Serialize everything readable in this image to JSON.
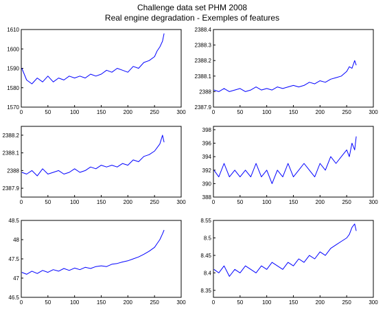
{
  "figure": {
    "title_line1": "Challenge data set PHM 2008",
    "title_line2": "Real engine degradation - Exemples of features"
  },
  "chart_data": [
    {
      "type": "line",
      "position": "row1-left",
      "xlim": [
        0,
        300
      ],
      "ylim": [
        1570,
        1610
      ],
      "x_ticks": [
        0,
        50,
        100,
        150,
        200,
        250,
        300
      ],
      "y_ticks": [
        1570,
        1580,
        1590,
        1600,
        1610
      ],
      "y_tick_labels": [
        "1570",
        "1580",
        "1590",
        "1600",
        "1610"
      ],
      "line_color": "#0000ff",
      "series": [
        {
          "x": [
            1,
            10,
            20,
            30,
            40,
            50,
            60,
            70,
            80,
            90,
            100,
            110,
            120,
            130,
            140,
            150,
            160,
            170,
            180,
            190,
            200,
            210,
            220,
            230,
            240,
            250,
            255,
            260,
            265,
            268
          ],
          "y": [
            1590,
            1584,
            1582,
            1585,
            1583,
            1586,
            1583,
            1585,
            1584,
            1586,
            1585,
            1586,
            1585,
            1587,
            1586,
            1587,
            1589,
            1588,
            1590,
            1589,
            1588,
            1591,
            1590,
            1593,
            1594,
            1596,
            1599,
            1601,
            1604,
            1608
          ]
        }
      ]
    },
    {
      "type": "line",
      "position": "row1-right",
      "xlim": [
        0,
        300
      ],
      "ylim": [
        2387.9,
        2388.4
      ],
      "x_ticks": [
        0,
        50,
        100,
        150,
        200,
        250,
        300
      ],
      "y_ticks": [
        2387.9,
        2388,
        2388.1,
        2388.2,
        2388.3,
        2388.4
      ],
      "y_tick_labels": [
        "2387.9",
        "2388",
        "2388.1",
        "2388.2",
        "2388.3",
        "2388.4"
      ],
      "line_color": "#0000ff",
      "series": [
        {
          "x": [
            1,
            10,
            20,
            30,
            40,
            50,
            60,
            70,
            80,
            90,
            100,
            110,
            120,
            130,
            140,
            150,
            160,
            170,
            180,
            190,
            200,
            210,
            220,
            230,
            240,
            250,
            255,
            260,
            265,
            268
          ],
          "y": [
            2388.01,
            2388.0,
            2388.02,
            2388.0,
            2388.01,
            2388.02,
            2388.0,
            2388.01,
            2388.03,
            2388.01,
            2388.02,
            2388.01,
            2388.03,
            2388.02,
            2388.03,
            2388.04,
            2388.03,
            2388.04,
            2388.06,
            2388.05,
            2388.07,
            2388.06,
            2388.08,
            2388.09,
            2388.1,
            2388.13,
            2388.16,
            2388.15,
            2388.2,
            2388.17
          ]
        }
      ]
    },
    {
      "type": "line",
      "position": "row2-left",
      "xlim": [
        0,
        300
      ],
      "ylim": [
        2387.85,
        2388.25
      ],
      "x_ticks": [
        0,
        50,
        100,
        150,
        200,
        250,
        300
      ],
      "y_ticks": [
        2387.9,
        2388,
        2388.1,
        2388.2
      ],
      "y_tick_labels": [
        "2387.9",
        "2388",
        "2388.1",
        "2388.2"
      ],
      "line_color": "#0000ff",
      "series": [
        {
          "x": [
            1,
            10,
            20,
            30,
            40,
            50,
            60,
            70,
            80,
            90,
            100,
            110,
            120,
            130,
            140,
            150,
            160,
            170,
            180,
            190,
            200,
            210,
            220,
            230,
            240,
            250,
            255,
            260,
            265,
            268
          ],
          "y": [
            2387.99,
            2387.98,
            2388.0,
            2387.97,
            2388.01,
            2387.98,
            2387.99,
            2388.0,
            2387.98,
            2387.99,
            2388.01,
            2387.99,
            2388.0,
            2388.02,
            2388.01,
            2388.03,
            2388.02,
            2388.03,
            2388.02,
            2388.04,
            2388.03,
            2388.06,
            2388.05,
            2388.08,
            2388.09,
            2388.11,
            2388.13,
            2388.15,
            2388.2,
            2388.16
          ]
        }
      ]
    },
    {
      "type": "line",
      "position": "row2-right",
      "xlim": [
        0,
        300
      ],
      "ylim": [
        388,
        398.5
      ],
      "x_ticks": [
        0,
        50,
        100,
        150,
        200,
        250,
        300
      ],
      "y_ticks": [
        388,
        390,
        392,
        394,
        396,
        398
      ],
      "y_tick_labels": [
        "388",
        "390",
        "392",
        "394",
        "396",
        "398"
      ],
      "line_color": "#0000ff",
      "series": [
        {
          "x": [
            1,
            10,
            20,
            30,
            40,
            50,
            60,
            70,
            80,
            90,
            100,
            110,
            120,
            130,
            140,
            150,
            160,
            170,
            180,
            190,
            200,
            210,
            220,
            230,
            240,
            250,
            255,
            260,
            265,
            268
          ],
          "y": [
            392,
            391,
            393,
            391,
            392,
            391,
            392,
            391,
            393,
            391,
            392,
            390,
            392,
            391,
            393,
            391,
            392,
            393,
            392,
            391,
            393,
            392,
            394,
            393,
            394,
            395,
            394,
            396,
            395,
            397
          ]
        }
      ]
    },
    {
      "type": "line",
      "position": "row3-left",
      "xlim": [
        0,
        300
      ],
      "ylim": [
        46.5,
        48.5
      ],
      "x_ticks": [
        0,
        50,
        100,
        150,
        200,
        250,
        300
      ],
      "y_ticks": [
        46.5,
        47,
        47.5,
        48,
        48.5
      ],
      "y_tick_labels": [
        "46.5",
        "47",
        "47.5",
        "48",
        "48.5"
      ],
      "line_color": "#0000ff",
      "series": [
        {
          "x": [
            1,
            10,
            20,
            30,
            40,
            50,
            60,
            70,
            80,
            90,
            100,
            110,
            120,
            130,
            140,
            150,
            160,
            170,
            180,
            190,
            200,
            210,
            220,
            230,
            240,
            250,
            255,
            260,
            265,
            268
          ],
          "y": [
            47.15,
            47.1,
            47.18,
            47.12,
            47.2,
            47.15,
            47.22,
            47.18,
            47.25,
            47.2,
            47.26,
            47.22,
            47.28,
            47.25,
            47.3,
            47.32,
            47.3,
            47.36,
            47.38,
            47.42,
            47.45,
            47.5,
            47.55,
            47.62,
            47.7,
            47.8,
            47.9,
            48.0,
            48.15,
            48.25
          ]
        }
      ]
    },
    {
      "type": "line",
      "position": "row3-right",
      "xlim": [
        0,
        300
      ],
      "ylim": [
        8.33,
        8.55
      ],
      "x_ticks": [
        0,
        50,
        100,
        150,
        200,
        250,
        300
      ],
      "y_ticks": [
        8.35,
        8.4,
        8.45,
        8.5,
        8.55
      ],
      "y_tick_labels": [
        "8.35",
        "8.4",
        "8.45",
        "8.5",
        "8.55"
      ],
      "line_color": "#0000ff",
      "series": [
        {
          "x": [
            1,
            10,
            20,
            30,
            40,
            50,
            60,
            70,
            80,
            90,
            100,
            110,
            120,
            130,
            140,
            150,
            160,
            170,
            180,
            190,
            200,
            210,
            220,
            230,
            240,
            250,
            255,
            260,
            265,
            268
          ],
          "y": [
            8.41,
            8.4,
            8.42,
            8.39,
            8.41,
            8.4,
            8.42,
            8.41,
            8.4,
            8.42,
            8.41,
            8.43,
            8.42,
            8.41,
            8.43,
            8.42,
            8.44,
            8.43,
            8.45,
            8.44,
            8.46,
            8.45,
            8.47,
            8.48,
            8.49,
            8.5,
            8.51,
            8.53,
            8.54,
            8.52
          ]
        }
      ]
    }
  ]
}
